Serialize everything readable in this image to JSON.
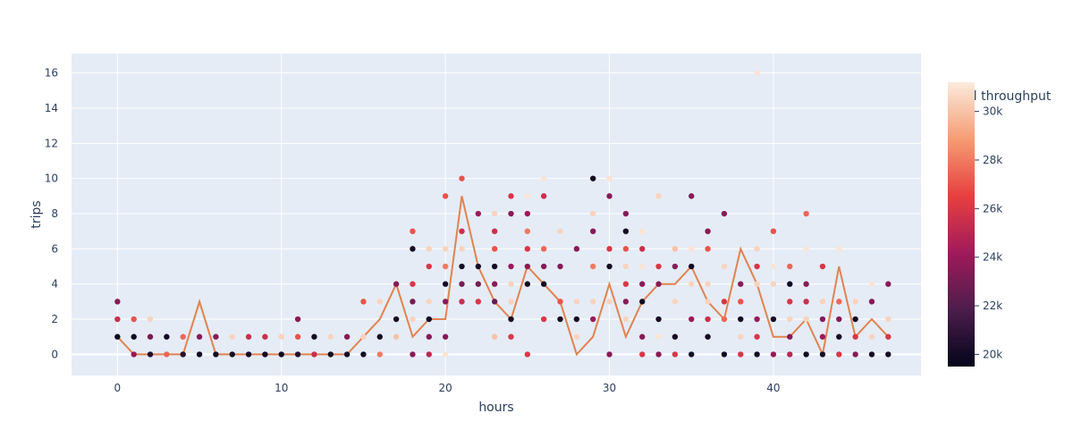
{
  "chart_data": {
    "type": "scatter",
    "title": "",
    "xlabel": "hours",
    "ylabel": "trips",
    "xlim": [
      -2.8,
      49.0
    ],
    "ylim": [
      -1.2,
      17.1
    ],
    "xticks": [
      0,
      10,
      20,
      30,
      40
    ],
    "yticks": [
      0,
      2,
      4,
      6,
      8,
      10,
      12,
      14,
      16
    ],
    "grid": true,
    "colorbar": {
      "title": "Total throughput",
      "range": [
        19500,
        31200
      ],
      "ticks": [
        20000,
        22000,
        24000,
        26000,
        28000,
        30000
      ],
      "tick_labels": [
        "20k",
        "22k",
        "24k",
        "26k",
        "28k",
        "30k"
      ],
      "colorscale": [
        "#03051a",
        "#4c1d4b",
        "#a11a5b",
        "#e83f3f",
        "#f69c73",
        "#faebdd"
      ]
    },
    "line": {
      "color": "#e1834f",
      "x": [
        0,
        1,
        2,
        3,
        4,
        5,
        6,
        7,
        8,
        9,
        10,
        11,
        12,
        13,
        14,
        15,
        16,
        17,
        18,
        19,
        20,
        21,
        22,
        23,
        24,
        25,
        26,
        27,
        28,
        29,
        30,
        31,
        32,
        33,
        34,
        35,
        36,
        37,
        38,
        39,
        40,
        41,
        42,
        43,
        44,
        45,
        46,
        47
      ],
      "y": [
        1,
        0,
        0,
        0,
        0,
        3,
        0,
        0,
        0,
        0,
        0,
        0,
        0,
        0,
        0,
        1,
        2,
        4,
        1,
        2,
        2,
        9,
        5,
        3,
        2,
        5,
        4,
        3,
        0,
        1,
        4,
        1,
        3,
        4,
        4,
        5,
        3,
        2,
        6,
        4,
        1,
        1,
        2,
        0,
        5,
        1,
        2,
        1
      ]
    },
    "points": [
      {
        "x": 0,
        "y": 3,
        "t": 23500
      },
      {
        "x": 0,
        "y": 2,
        "t": 25500
      },
      {
        "x": 0,
        "y": 1,
        "t": 19800
      },
      {
        "x": 1,
        "y": 2,
        "t": 27000
      },
      {
        "x": 1,
        "y": 1,
        "t": 19900
      },
      {
        "x": 1,
        "y": 0,
        "t": 24000
      },
      {
        "x": 2,
        "y": 2,
        "t": 30500
      },
      {
        "x": 2,
        "y": 1,
        "t": 23000
      },
      {
        "x": 2,
        "y": 0,
        "t": 20500
      },
      {
        "x": 3,
        "y": 1,
        "t": 20000
      },
      {
        "x": 3,
        "y": 0,
        "t": 27500
      },
      {
        "x": 4,
        "y": 1,
        "t": 27500
      },
      {
        "x": 4,
        "y": 0,
        "t": 20500
      },
      {
        "x": 5,
        "y": 1,
        "t": 23500
      },
      {
        "x": 5,
        "y": 0,
        "t": 20000
      },
      {
        "x": 6,
        "y": 1,
        "t": 23500
      },
      {
        "x": 6,
        "y": 0,
        "t": 20000
      },
      {
        "x": 7,
        "y": 1,
        "t": 30500
      },
      {
        "x": 7,
        "y": 0,
        "t": 20000
      },
      {
        "x": 8,
        "y": 1,
        "t": 25500
      },
      {
        "x": 8,
        "y": 0,
        "t": 20000
      },
      {
        "x": 9,
        "y": 1,
        "t": 25500
      },
      {
        "x": 9,
        "y": 0,
        "t": 20000
      },
      {
        "x": 10,
        "y": 1,
        "t": 30500
      },
      {
        "x": 10,
        "y": 0,
        "t": 20000
      },
      {
        "x": 11,
        "y": 2,
        "t": 23500
      },
      {
        "x": 11,
        "y": 1,
        "t": 27000
      },
      {
        "x": 11,
        "y": 0,
        "t": 20500
      },
      {
        "x": 12,
        "y": 1,
        "t": 20000
      },
      {
        "x": 12,
        "y": 0,
        "t": 25500
      },
      {
        "x": 13,
        "y": 1,
        "t": 30500
      },
      {
        "x": 13,
        "y": 0,
        "t": 20000
      },
      {
        "x": 14,
        "y": 1,
        "t": 23500
      },
      {
        "x": 14,
        "y": 0,
        "t": 20000
      },
      {
        "x": 15,
        "y": 3,
        "t": 27000
      },
      {
        "x": 15,
        "y": 1,
        "t": 30500
      },
      {
        "x": 15,
        "y": 0,
        "t": 20000
      },
      {
        "x": 16,
        "y": 3,
        "t": 30500
      },
      {
        "x": 16,
        "y": 1,
        "t": 20000
      },
      {
        "x": 16,
        "y": 0,
        "t": 28000
      },
      {
        "x": 17,
        "y": 4,
        "t": 23500
      },
      {
        "x": 17,
        "y": 2,
        "t": 20000
      },
      {
        "x": 17,
        "y": 1,
        "t": 30000
      },
      {
        "x": 18,
        "y": 7,
        "t": 27000
      },
      {
        "x": 18,
        "y": 6,
        "t": 20000
      },
      {
        "x": 18,
        "y": 4,
        "t": 26000
      },
      {
        "x": 18,
        "y": 3,
        "t": 23000
      },
      {
        "x": 18,
        "y": 2,
        "t": 30500
      },
      {
        "x": 18,
        "y": 0,
        "t": 23500
      },
      {
        "x": 19,
        "y": 6,
        "t": 30500
      },
      {
        "x": 19,
        "y": 5,
        "t": 26000
      },
      {
        "x": 19,
        "y": 3,
        "t": 30500
      },
      {
        "x": 19,
        "y": 2,
        "t": 20000
      },
      {
        "x": 19,
        "y": 1,
        "t": 23500
      },
      {
        "x": 19,
        "y": 0,
        "t": 25000
      },
      {
        "x": 20,
        "y": 9,
        "t": 27000
      },
      {
        "x": 20,
        "y": 6,
        "t": 30500
      },
      {
        "x": 20,
        "y": 5,
        "t": 28000
      },
      {
        "x": 20,
        "y": 4,
        "t": 20000
      },
      {
        "x": 20,
        "y": 3,
        "t": 23500
      },
      {
        "x": 20,
        "y": 1,
        "t": 23500
      },
      {
        "x": 20,
        "y": 0,
        "t": 31000
      },
      {
        "x": 21,
        "y": 10,
        "t": 27000
      },
      {
        "x": 21,
        "y": 7,
        "t": 25500
      },
      {
        "x": 21,
        "y": 6,
        "t": 30500
      },
      {
        "x": 21,
        "y": 5,
        "t": 20000
      },
      {
        "x": 21,
        "y": 4,
        "t": 23000
      },
      {
        "x": 21,
        "y": 3,
        "t": 25500
      },
      {
        "x": 22,
        "y": 8,
        "t": 24000
      },
      {
        "x": 22,
        "y": 5,
        "t": 20000
      },
      {
        "x": 22,
        "y": 4,
        "t": 23000
      },
      {
        "x": 22,
        "y": 3,
        "t": 26000
      },
      {
        "x": 23,
        "y": 8,
        "t": 30500
      },
      {
        "x": 23,
        "y": 7,
        "t": 25500
      },
      {
        "x": 23,
        "y": 6,
        "t": 27000
      },
      {
        "x": 23,
        "y": 5,
        "t": 20000
      },
      {
        "x": 23,
        "y": 4,
        "t": 23500
      },
      {
        "x": 23,
        "y": 3,
        "t": 22500
      },
      {
        "x": 23,
        "y": 1,
        "t": 30000
      },
      {
        "x": 24,
        "y": 9,
        "t": 26000
      },
      {
        "x": 24,
        "y": 8,
        "t": 23500
      },
      {
        "x": 24,
        "y": 5,
        "t": 24000
      },
      {
        "x": 24,
        "y": 4,
        "t": 30500
      },
      {
        "x": 24,
        "y": 3,
        "t": 30500
      },
      {
        "x": 24,
        "y": 2,
        "t": 20000
      },
      {
        "x": 24,
        "y": 1,
        "t": 26000
      },
      {
        "x": 25,
        "y": 9,
        "t": 31000
      },
      {
        "x": 25,
        "y": 8,
        "t": 24000
      },
      {
        "x": 25,
        "y": 7,
        "t": 28000
      },
      {
        "x": 25,
        "y": 6,
        "t": 26000
      },
      {
        "x": 25,
        "y": 5,
        "t": 23500
      },
      {
        "x": 25,
        "y": 4,
        "t": 20000
      },
      {
        "x": 25,
        "y": 0,
        "t": 26000
      },
      {
        "x": 26,
        "y": 10,
        "t": 31000
      },
      {
        "x": 26,
        "y": 9,
        "t": 25500
      },
      {
        "x": 26,
        "y": 6,
        "t": 27500
      },
      {
        "x": 26,
        "y": 5,
        "t": 23500
      },
      {
        "x": 26,
        "y": 4,
        "t": 20000
      },
      {
        "x": 26,
        "y": 2,
        "t": 26000
      },
      {
        "x": 27,
        "y": 7,
        "t": 30500
      },
      {
        "x": 27,
        "y": 5,
        "t": 23500
      },
      {
        "x": 27,
        "y": 3,
        "t": 27000
      },
      {
        "x": 27,
        "y": 2,
        "t": 20000
      },
      {
        "x": 28,
        "y": 6,
        "t": 23500
      },
      {
        "x": 28,
        "y": 3,
        "t": 30500
      },
      {
        "x": 28,
        "y": 2,
        "t": 20000
      },
      {
        "x": 28,
        "y": 1,
        "t": 30500
      },
      {
        "x": 29,
        "y": 10,
        "t": 20000
      },
      {
        "x": 29,
        "y": 8,
        "t": 30500
      },
      {
        "x": 29,
        "y": 7,
        "t": 23500
      },
      {
        "x": 29,
        "y": 5,
        "t": 28000
      },
      {
        "x": 29,
        "y": 3,
        "t": 30500
      },
      {
        "x": 29,
        "y": 2,
        "t": 24000
      },
      {
        "x": 30,
        "y": 10,
        "t": 31000
      },
      {
        "x": 30,
        "y": 9,
        "t": 23500
      },
      {
        "x": 30,
        "y": 6,
        "t": 26000
      },
      {
        "x": 30,
        "y": 5,
        "t": 20000
      },
      {
        "x": 30,
        "y": 3,
        "t": 30500
      },
      {
        "x": 30,
        "y": 0,
        "t": 23500
      },
      {
        "x": 31,
        "y": 8,
        "t": 23500
      },
      {
        "x": 31,
        "y": 7,
        "t": 20000
      },
      {
        "x": 31,
        "y": 6,
        "t": 27000
      },
      {
        "x": 31,
        "y": 5,
        "t": 30500
      },
      {
        "x": 31,
        "y": 4,
        "t": 26000
      },
      {
        "x": 31,
        "y": 3,
        "t": 23500
      },
      {
        "x": 31,
        "y": 2,
        "t": 30500
      },
      {
        "x": 32,
        "y": 7,
        "t": 31000
      },
      {
        "x": 32,
        "y": 6,
        "t": 25500
      },
      {
        "x": 32,
        "y": 5,
        "t": 31000
      },
      {
        "x": 32,
        "y": 4,
        "t": 23500
      },
      {
        "x": 32,
        "y": 3,
        "t": 20000
      },
      {
        "x": 32,
        "y": 1,
        "t": 23500
      },
      {
        "x": 32,
        "y": 0,
        "t": 26000
      },
      {
        "x": 33,
        "y": 9,
        "t": 30500
      },
      {
        "x": 33,
        "y": 5,
        "t": 26000
      },
      {
        "x": 33,
        "y": 4,
        "t": 23500
      },
      {
        "x": 33,
        "y": 2,
        "t": 20000
      },
      {
        "x": 33,
        "y": 1,
        "t": 31000
      },
      {
        "x": 33,
        "y": 0,
        "t": 23500
      },
      {
        "x": 34,
        "y": 6,
        "t": 30000
      },
      {
        "x": 34,
        "y": 5,
        "t": 23500
      },
      {
        "x": 34,
        "y": 3,
        "t": 30500
      },
      {
        "x": 34,
        "y": 1,
        "t": 20000
      },
      {
        "x": 34,
        "y": 0,
        "t": 26000
      },
      {
        "x": 35,
        "y": 9,
        "t": 23500
      },
      {
        "x": 35,
        "y": 6,
        "t": 31000
      },
      {
        "x": 35,
        "y": 5,
        "t": 20000
      },
      {
        "x": 35,
        "y": 4,
        "t": 30500
      },
      {
        "x": 35,
        "y": 2,
        "t": 24000
      },
      {
        "x": 35,
        "y": 0,
        "t": 20000
      },
      {
        "x": 36,
        "y": 7,
        "t": 23500
      },
      {
        "x": 36,
        "y": 6,
        "t": 27000
      },
      {
        "x": 36,
        "y": 4,
        "t": 30500
      },
      {
        "x": 36,
        "y": 3,
        "t": 30500
      },
      {
        "x": 36,
        "y": 2,
        "t": 25500
      },
      {
        "x": 36,
        "y": 1,
        "t": 20000
      },
      {
        "x": 37,
        "y": 8,
        "t": 23500
      },
      {
        "x": 37,
        "y": 5,
        "t": 30500
      },
      {
        "x": 37,
        "y": 3,
        "t": 26000
      },
      {
        "x": 37,
        "y": 2,
        "t": 27500
      },
      {
        "x": 37,
        "y": 0,
        "t": 20000
      },
      {
        "x": 38,
        "y": 4,
        "t": 23500
      },
      {
        "x": 38,
        "y": 3,
        "t": 27000
      },
      {
        "x": 38,
        "y": 2,
        "t": 20000
      },
      {
        "x": 38,
        "y": 1,
        "t": 30500
      },
      {
        "x": 38,
        "y": 0,
        "t": 26000
      },
      {
        "x": 39,
        "y": 16,
        "t": 31000
      },
      {
        "x": 39,
        "y": 6,
        "t": 30500
      },
      {
        "x": 39,
        "y": 5,
        "t": 26000
      },
      {
        "x": 39,
        "y": 4,
        "t": 30500
      },
      {
        "x": 39,
        "y": 2,
        "t": 24000
      },
      {
        "x": 39,
        "y": 1,
        "t": 26000
      },
      {
        "x": 39,
        "y": 0,
        "t": 20000
      },
      {
        "x": 40,
        "y": 7,
        "t": 27000
      },
      {
        "x": 40,
        "y": 5,
        "t": 31000
      },
      {
        "x": 40,
        "y": 4,
        "t": 30500
      },
      {
        "x": 40,
        "y": 2,
        "t": 20000
      },
      {
        "x": 40,
        "y": 0,
        "t": 24000
      },
      {
        "x": 41,
        "y": 5,
        "t": 27500
      },
      {
        "x": 41,
        "y": 4,
        "t": 20000
      },
      {
        "x": 41,
        "y": 3,
        "t": 26000
      },
      {
        "x": 41,
        "y": 2,
        "t": 30500
      },
      {
        "x": 41,
        "y": 1,
        "t": 23500
      },
      {
        "x": 41,
        "y": 0,
        "t": 25000
      },
      {
        "x": 42,
        "y": 8,
        "t": 27500
      },
      {
        "x": 42,
        "y": 6,
        "t": 31000
      },
      {
        "x": 42,
        "y": 4,
        "t": 23500
      },
      {
        "x": 42,
        "y": 3,
        "t": 25500
      },
      {
        "x": 42,
        "y": 2,
        "t": 30500
      },
      {
        "x": 42,
        "y": 0,
        "t": 20000
      },
      {
        "x": 43,
        "y": 5,
        "t": 26000
      },
      {
        "x": 43,
        "y": 3,
        "t": 30500
      },
      {
        "x": 43,
        "y": 2,
        "t": 23500
      },
      {
        "x": 43,
        "y": 1,
        "t": 24000
      },
      {
        "x": 43,
        "y": 0,
        "t": 20000
      },
      {
        "x": 44,
        "y": 6,
        "t": 31000
      },
      {
        "x": 44,
        "y": 3,
        "t": 27500
      },
      {
        "x": 44,
        "y": 2,
        "t": 23500
      },
      {
        "x": 44,
        "y": 1,
        "t": 20000
      },
      {
        "x": 44,
        "y": 0,
        "t": 26000
      },
      {
        "x": 45,
        "y": 3,
        "t": 30500
      },
      {
        "x": 45,
        "y": 2,
        "t": 20000
      },
      {
        "x": 45,
        "y": 1,
        "t": 26000
      },
      {
        "x": 45,
        "y": 0,
        "t": 23500
      },
      {
        "x": 46,
        "y": 4,
        "t": 31000
      },
      {
        "x": 46,
        "y": 3,
        "t": 23500
      },
      {
        "x": 46,
        "y": 1,
        "t": 30500
      },
      {
        "x": 46,
        "y": 0,
        "t": 20000
      },
      {
        "x": 47,
        "y": 4,
        "t": 23500
      },
      {
        "x": 47,
        "y": 2,
        "t": 30500
      },
      {
        "x": 47,
        "y": 1,
        "t": 26000
      },
      {
        "x": 47,
        "y": 0,
        "t": 20000
      }
    ]
  }
}
